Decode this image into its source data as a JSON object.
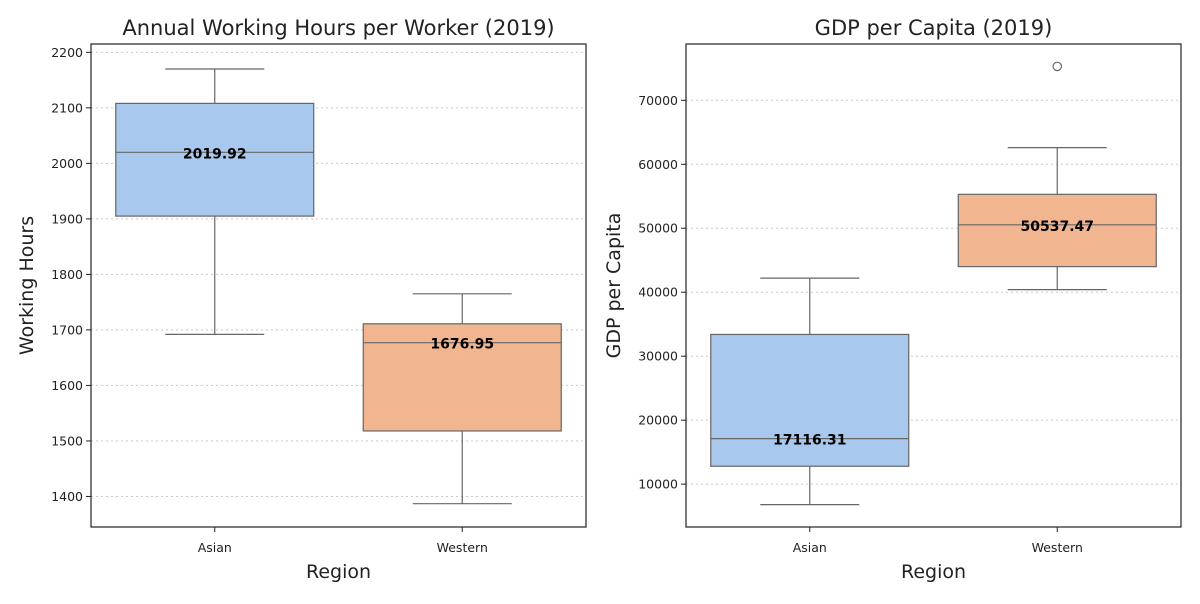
{
  "chart_data": [
    {
      "type": "box",
      "title": "Annual Working Hours per Worker (2019)",
      "xlabel": "Region",
      "ylabel": "Working Hours",
      "ylim": [
        1345,
        2215
      ],
      "yticks": [
        1400,
        1500,
        1600,
        1700,
        1800,
        1900,
        2000,
        2100,
        2200
      ],
      "categories": [
        "Asian",
        "Western"
      ],
      "grid": "y-dotted",
      "series": [
        {
          "category": "Asian",
          "whisker_low": 1692,
          "q1": 1905,
          "median": 2019.92,
          "q3": 2108,
          "whisker_high": 2170,
          "outliers": [],
          "median_label": "2019.92",
          "color": "#a8c8ee"
        },
        {
          "category": "Western",
          "whisker_low": 1387,
          "q1": 1518,
          "median": 1676.95,
          "q3": 1711,
          "whisker_high": 1765,
          "outliers": [],
          "median_label": "1676.95",
          "color": "#f1b690"
        }
      ]
    },
    {
      "type": "box",
      "title": "GDP per Capita (2019)",
      "xlabel": "Region",
      "ylabel": "GDP per Capita",
      "ylim": [
        3300,
        78800
      ],
      "yticks": [
        10000,
        20000,
        30000,
        40000,
        50000,
        60000,
        70000
      ],
      "categories": [
        "Asian",
        "Western"
      ],
      "grid": "y-dotted",
      "series": [
        {
          "category": "Asian",
          "whisker_low": 6800,
          "q1": 12800,
          "median": 17116.31,
          "q3": 33400,
          "whisker_high": 42200,
          "outliers": [],
          "median_label": "17116.31",
          "color": "#a8c8ee"
        },
        {
          "category": "Western",
          "whisker_low": 40400,
          "q1": 44000,
          "median": 50537.47,
          "q3": 55300,
          "whisker_high": 62600,
          "outliers": [
            75300
          ],
          "median_label": "50537.47",
          "color": "#f1b690"
        }
      ]
    }
  ]
}
